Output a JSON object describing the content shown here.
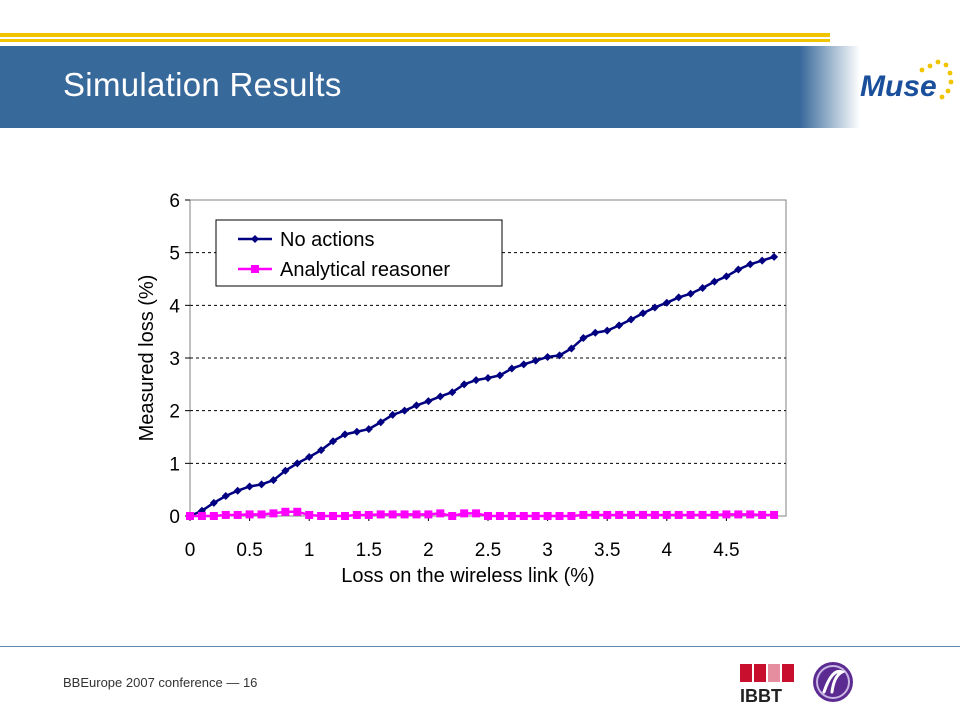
{
  "slide": {
    "title": "Simulation Results",
    "footer": "BBEurope 2007 conference — 16",
    "logo_text": "Muse",
    "ibbt_text": "IBBT",
    "colors": {
      "header": "#38699b",
      "accent": "#f1c400"
    }
  },
  "chart_data": {
    "type": "line",
    "title": "",
    "xlabel": "Loss on the wireless link (%)",
    "ylabel": "Measured loss (%)",
    "xlim": [
      0,
      5
    ],
    "ylim": [
      0,
      6
    ],
    "xticks": [
      "0",
      "0.5",
      "1",
      "1.5",
      "2",
      "2.5",
      "3",
      "3.5",
      "4",
      "4.5"
    ],
    "yticks": [
      "0",
      "1",
      "2",
      "3",
      "4",
      "5",
      "6"
    ],
    "grid": "horizontal dashed",
    "legend": "top-left",
    "x": [
      0,
      0.1,
      0.2,
      0.3,
      0.4,
      0.5,
      0.6,
      0.7,
      0.8,
      0.9,
      1.0,
      1.1,
      1.2,
      1.3,
      1.4,
      1.5,
      1.6,
      1.7,
      1.8,
      1.9,
      2.0,
      2.1,
      2.2,
      2.3,
      2.4,
      2.5,
      2.6,
      2.7,
      2.8,
      2.9,
      3.0,
      3.1,
      3.2,
      3.3,
      3.4,
      3.5,
      3.6,
      3.7,
      3.8,
      3.9,
      4.0,
      4.1,
      4.2,
      4.3,
      4.4,
      4.5,
      4.6,
      4.7,
      4.8,
      4.9
    ],
    "series": [
      {
        "name": "No actions",
        "color": "#000080",
        "marker": "diamond",
        "values": [
          0.0,
          0.1,
          0.25,
          0.38,
          0.48,
          0.56,
          0.6,
          0.68,
          0.86,
          1.0,
          1.12,
          1.25,
          1.42,
          1.55,
          1.6,
          1.65,
          1.78,
          1.92,
          2.0,
          2.1,
          2.18,
          2.27,
          2.35,
          2.5,
          2.58,
          2.62,
          2.67,
          2.8,
          2.88,
          2.95,
          3.02,
          3.05,
          3.18,
          3.38,
          3.48,
          3.52,
          3.62,
          3.73,
          3.85,
          3.96,
          4.05,
          4.15,
          4.22,
          4.33,
          4.45,
          4.55,
          4.68,
          4.78,
          4.85,
          4.92
        ]
      },
      {
        "name": "Analytical reasoner",
        "color": "#ff00ff",
        "marker": "square",
        "values": [
          0.0,
          0.0,
          0.0,
          0.02,
          0.02,
          0.03,
          0.03,
          0.05,
          0.08,
          0.08,
          0.02,
          0.0,
          0.0,
          0.0,
          0.02,
          0.02,
          0.03,
          0.03,
          0.03,
          0.03,
          0.03,
          0.05,
          0.0,
          0.05,
          0.05,
          0.0,
          0.0,
          0.0,
          0.0,
          0.0,
          0.0,
          0.0,
          0.0,
          0.02,
          0.02,
          0.02,
          0.02,
          0.02,
          0.02,
          0.02,
          0.02,
          0.02,
          0.02,
          0.02,
          0.02,
          0.03,
          0.03,
          0.03,
          0.02,
          0.02
        ]
      }
    ]
  }
}
